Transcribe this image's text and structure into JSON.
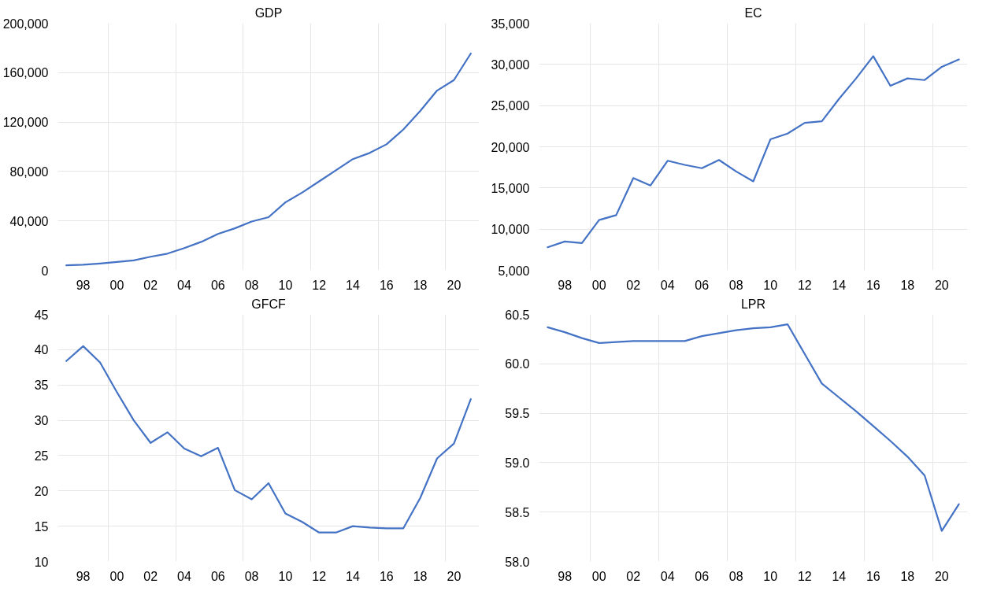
{
  "chart_data": [
    {
      "type": "line",
      "title": "GDP",
      "x": [
        1997,
        1998,
        1999,
        2000,
        2001,
        2002,
        2003,
        2004,
        2005,
        2006,
        2007,
        2008,
        2009,
        2010,
        2011,
        2012,
        2013,
        2014,
        2015,
        2016,
        2017,
        2018,
        2019,
        2020,
        2021
      ],
      "series": [
        {
          "color": "#4472c4",
          "values": [
            4000,
            4500,
            5500,
            6800,
            8000,
            11000,
            13500,
            18000,
            23000,
            29500,
            34000,
            39500,
            43000,
            55000,
            63000,
            72000,
            81000,
            90000,
            95000,
            102000,
            114000,
            129000,
            145500,
            154000,
            175500
          ]
        }
      ],
      "xlim": [
        1996.5,
        2021.5
      ],
      "xticks": [
        {
          "value": 1998,
          "label": "98"
        },
        {
          "value": 1999.5,
          "label": null
        },
        {
          "value": 2000,
          "label": "00"
        },
        {
          "value": 2002,
          "label": "02"
        },
        {
          "value": 2003.5,
          "label": null
        },
        {
          "value": 2004,
          "label": "04"
        },
        {
          "value": 2006,
          "label": "06"
        },
        {
          "value": 2007.5,
          "label": null
        },
        {
          "value": 2008,
          "label": "08"
        },
        {
          "value": 2010,
          "label": "10"
        },
        {
          "value": 2011.5,
          "label": null
        },
        {
          "value": 2012,
          "label": "12"
        },
        {
          "value": 2014,
          "label": "14"
        },
        {
          "value": 2015.5,
          "label": null
        },
        {
          "value": 2016,
          "label": "16"
        },
        {
          "value": 2018,
          "label": "18"
        },
        {
          "value": 2019.5,
          "label": null
        },
        {
          "value": 2020,
          "label": "20"
        }
      ],
      "ylim": [
        0,
        200000
      ],
      "yticks": [
        {
          "value": 0,
          "label": "0"
        },
        {
          "value": 40000,
          "label": "40,000"
        },
        {
          "value": 80000,
          "label": "80,000"
        },
        {
          "value": 120000,
          "label": "120,000"
        },
        {
          "value": 160000,
          "label": "160,000"
        },
        {
          "value": 200000,
          "label": "200,000"
        }
      ],
      "grid": true
    },
    {
      "type": "line",
      "title": "EC",
      "x": [
        1997,
        1998,
        1999,
        2000,
        2001,
        2002,
        2003,
        2004,
        2005,
        2006,
        2007,
        2008,
        2009,
        2010,
        2011,
        2012,
        2013,
        2014,
        2015,
        2016,
        2017,
        2018,
        2019,
        2020,
        2021
      ],
      "series": [
        {
          "color": "#4472c4",
          "values": [
            7800,
            8500,
            8300,
            11100,
            11700,
            16200,
            15300,
            18300,
            17800,
            17400,
            18400,
            17000,
            15800,
            20900,
            21600,
            22900,
            23100,
            25800,
            28300,
            31000,
            27400,
            28300,
            28100,
            29700,
            30600
          ]
        }
      ],
      "xlim": [
        1996.5,
        2021.5
      ],
      "xticks": [
        {
          "value": 1998,
          "label": "98"
        },
        {
          "value": 1999.5,
          "label": null
        },
        {
          "value": 2000,
          "label": "00"
        },
        {
          "value": 2002,
          "label": "02"
        },
        {
          "value": 2003.5,
          "label": null
        },
        {
          "value": 2004,
          "label": "04"
        },
        {
          "value": 2006,
          "label": "06"
        },
        {
          "value": 2007.5,
          "label": null
        },
        {
          "value": 2008,
          "label": "08"
        },
        {
          "value": 2010,
          "label": "10"
        },
        {
          "value": 2011.5,
          "label": null
        },
        {
          "value": 2012,
          "label": "12"
        },
        {
          "value": 2014,
          "label": "14"
        },
        {
          "value": 2015.5,
          "label": null
        },
        {
          "value": 2016,
          "label": "16"
        },
        {
          "value": 2018,
          "label": "18"
        },
        {
          "value": 2019.5,
          "label": null
        },
        {
          "value": 2020,
          "label": "20"
        }
      ],
      "ylim": [
        5000,
        35000
      ],
      "yticks": [
        {
          "value": 5000,
          "label": "5,000"
        },
        {
          "value": 10000,
          "label": "10,000"
        },
        {
          "value": 15000,
          "label": "15,000"
        },
        {
          "value": 20000,
          "label": "20,000"
        },
        {
          "value": 25000,
          "label": "25,000"
        },
        {
          "value": 30000,
          "label": "30,000"
        },
        {
          "value": 35000,
          "label": "35,000"
        }
      ],
      "grid": true
    },
    {
      "type": "line",
      "title": "GFCF",
      "x": [
        1997,
        1998,
        1999,
        2000,
        2001,
        2002,
        2003,
        2004,
        2005,
        2006,
        2007,
        2008,
        2009,
        2010,
        2011,
        2012,
        2013,
        2014,
        2015,
        2016,
        2017,
        2018,
        2019,
        2020,
        2021
      ],
      "series": [
        {
          "color": "#4472c4",
          "values": [
            38.4,
            40.5,
            38.2,
            34,
            30,
            26.8,
            28.3,
            26,
            24.9,
            26.1,
            20.1,
            18.8,
            21.1,
            16.8,
            15.6,
            14.1,
            14.1,
            15,
            14.8,
            14.7,
            14.7,
            19,
            24.6,
            26.7,
            33
          ]
        }
      ],
      "xlim": [
        1996.5,
        2021.5
      ],
      "xticks": [
        {
          "value": 1998,
          "label": "98"
        },
        {
          "value": 1999.5,
          "label": null
        },
        {
          "value": 2000,
          "label": "00"
        },
        {
          "value": 2002,
          "label": "02"
        },
        {
          "value": 2003.5,
          "label": null
        },
        {
          "value": 2004,
          "label": "04"
        },
        {
          "value": 2006,
          "label": "06"
        },
        {
          "value": 2007.5,
          "label": null
        },
        {
          "value": 2008,
          "label": "08"
        },
        {
          "value": 2010,
          "label": "10"
        },
        {
          "value": 2011.5,
          "label": null
        },
        {
          "value": 2012,
          "label": "12"
        },
        {
          "value": 2014,
          "label": "14"
        },
        {
          "value": 2015.5,
          "label": null
        },
        {
          "value": 2016,
          "label": "16"
        },
        {
          "value": 2018,
          "label": "18"
        },
        {
          "value": 2019.5,
          "label": null
        },
        {
          "value": 2020,
          "label": "20"
        }
      ],
      "ylim": [
        10,
        45
      ],
      "yticks": [
        10,
        15,
        20,
        25,
        30,
        35,
        40,
        45
      ],
      "grid": true
    },
    {
      "type": "line",
      "title": "LPR",
      "x": [
        1997,
        1998,
        1999,
        2000,
        2001,
        2002,
        2003,
        2004,
        2005,
        2006,
        2007,
        2008,
        2009,
        2010,
        2011,
        2012,
        2013,
        2014,
        2015,
        2016,
        2017,
        2018,
        2019,
        2020,
        2021
      ],
      "series": [
        {
          "color": "#4472c4",
          "values": [
            60.37,
            60.32,
            60.26,
            60.21,
            60.22,
            60.23,
            60.23,
            60.23,
            60.23,
            60.28,
            60.31,
            60.34,
            60.36,
            60.37,
            60.4,
            60.1,
            59.8,
            59.66,
            59.52,
            59.37,
            59.22,
            59.06,
            58.87,
            58.31,
            58.58
          ]
        }
      ],
      "xlim": [
        1996.5,
        2021.5
      ],
      "xticks": [
        {
          "value": 1998,
          "label": "98"
        },
        {
          "value": 1999.5,
          "label": null
        },
        {
          "value": 2000,
          "label": "00"
        },
        {
          "value": 2002,
          "label": "02"
        },
        {
          "value": 2003.5,
          "label": null
        },
        {
          "value": 2004,
          "label": "04"
        },
        {
          "value": 2006,
          "label": "06"
        },
        {
          "value": 2007.5,
          "label": null
        },
        {
          "value": 2008,
          "label": "08"
        },
        {
          "value": 2010,
          "label": "10"
        },
        {
          "value": 2011.5,
          "label": null
        },
        {
          "value": 2012,
          "label": "12"
        },
        {
          "value": 2014,
          "label": "14"
        },
        {
          "value": 2015.5,
          "label": null
        },
        {
          "value": 2016,
          "label": "16"
        },
        {
          "value": 2018,
          "label": "18"
        },
        {
          "value": 2019.5,
          "label": null
        },
        {
          "value": 2020,
          "label": "20"
        }
      ],
      "ylim": [
        58.0,
        60.5
      ],
      "yticks": [
        {
          "value": 58.0,
          "label": "58.0"
        },
        {
          "value": 58.5,
          "label": "58.5"
        },
        {
          "value": 59.0,
          "label": "59.0"
        },
        {
          "value": 59.5,
          "label": "59.5"
        },
        {
          "value": 60.0,
          "label": "60.0"
        },
        {
          "value": 60.5,
          "label": "60.5"
        }
      ],
      "grid": true
    }
  ]
}
